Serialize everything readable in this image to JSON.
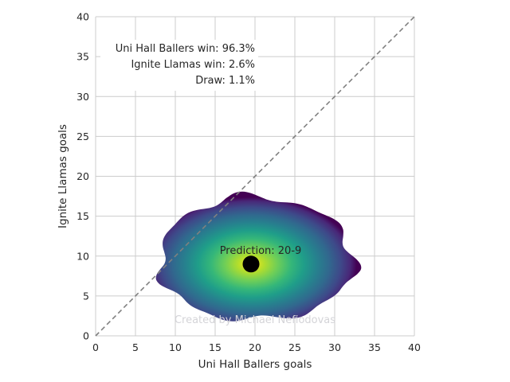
{
  "chart_data": {
    "type": "heatmap",
    "xlabel": "Uni Hall Ballers goals",
    "ylabel": "Ignite Llamas goals",
    "xlim": [
      0,
      40
    ],
    "ylim": [
      0,
      40
    ],
    "xticks": [
      "0",
      "5",
      "10",
      "15",
      "20",
      "25",
      "30",
      "35",
      "40"
    ],
    "yticks": [
      "0",
      "5",
      "10",
      "15",
      "20",
      "25",
      "30",
      "35",
      "40"
    ],
    "grid": true,
    "colormap": "viridis",
    "density_center": [
      19.5,
      9
    ],
    "density_extent": {
      "x": [
        8,
        32.5
      ],
      "y": [
        2,
        17.5
      ]
    },
    "prediction_point": {
      "x": 19.5,
      "y": 9,
      "label": "Prediction: 20-9"
    },
    "diagonal_reference": {
      "from": [
        0,
        0
      ],
      "to": [
        40,
        40
      ],
      "style": "dashed"
    },
    "win_probabilities": [
      {
        "text": "Uni Hall Ballers win: 96.3%"
      },
      {
        "text": "Ignite Llamas win: 2.6%"
      },
      {
        "text": "Draw: 1.1%"
      }
    ],
    "watermark": "Created by Michael Nefiodovas"
  },
  "colors": {
    "grid": "#cccccc",
    "diagonal": "#808080",
    "point": "#000000",
    "viridis": [
      "#440154",
      "#482878",
      "#3e4989",
      "#31688e",
      "#26828e",
      "#1f9e89",
      "#35b779",
      "#6ece58",
      "#b5de2b",
      "#fde725"
    ]
  }
}
